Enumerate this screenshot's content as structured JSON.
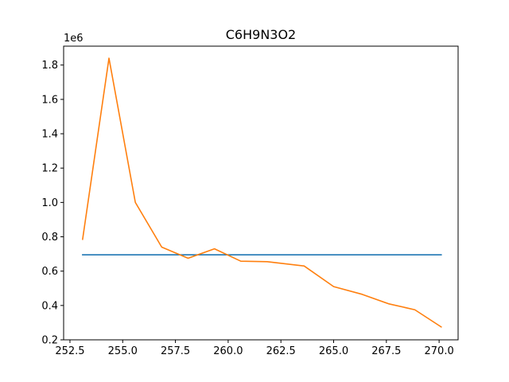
{
  "chart_data": {
    "type": "line",
    "title": "C6H9N3O2",
    "xlabel": "",
    "ylabel": "",
    "y_offset_label": "1e6",
    "xlim": [
      252.2,
      270.9
    ],
    "ylim": [
      0.2,
      1.91
    ],
    "x_ticks": [
      252.5,
      255.0,
      257.5,
      260.0,
      262.5,
      265.0,
      267.5,
      270.0
    ],
    "x_tick_labels": [
      "252.5",
      "255.0",
      "257.5",
      "260.0",
      "262.5",
      "265.0",
      "267.5",
      "270.0"
    ],
    "y_ticks": [
      0.2,
      0.4,
      0.6,
      0.8,
      1.0,
      1.2,
      1.4,
      1.6,
      1.8
    ],
    "y_tick_labels": [
      "0.2",
      "0.4",
      "0.6",
      "0.8",
      "1.0",
      "1.2",
      "1.4",
      "1.6",
      "1.8"
    ],
    "grid": false,
    "series": [
      {
        "color": "#1f77b4",
        "x": [
          253.1,
          270.1
        ],
        "y": [
          0.695,
          0.695
        ]
      },
      {
        "color": "#ff7f0e",
        "x": [
          253.1,
          254.35,
          255.6,
          256.85,
          258.1,
          259.35,
          260.6,
          261.85,
          263.6,
          265.0,
          266.35,
          267.6,
          268.85,
          270.1
        ],
        "y": [
          0.785,
          1.84,
          1.0,
          0.74,
          0.675,
          0.73,
          0.658,
          0.655,
          0.63,
          0.51,
          0.465,
          0.41,
          0.375,
          0.275
        ]
      }
    ]
  }
}
